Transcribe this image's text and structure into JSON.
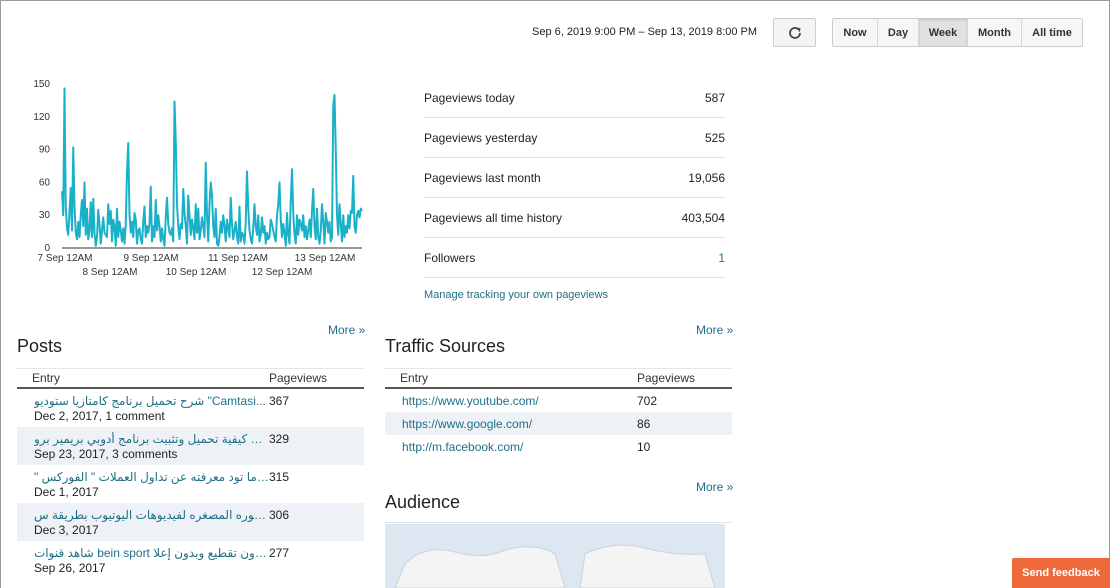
{
  "header": {
    "date_range": "Sep 6, 2019 9:00 PM – Sep 13, 2019 8:00 PM",
    "range_buttons": [
      {
        "label": "Now",
        "active": false
      },
      {
        "label": "Day",
        "active": false
      },
      {
        "label": "Week",
        "active": true
      },
      {
        "label": "Month",
        "active": false
      },
      {
        "label": "All time",
        "active": false
      }
    ]
  },
  "chart_data": {
    "type": "line",
    "series": [
      {
        "values": [
          52,
          30,
          146,
          38,
          18,
          12,
          33,
          55,
          16,
          92,
          38,
          14,
          8,
          24,
          10,
          30,
          44,
          20,
          60,
          12,
          36,
          8,
          16,
          42,
          10,
          45,
          14,
          2,
          10,
          35,
          22,
          4,
          16,
          28,
          14,
          12,
          10,
          40,
          22,
          34,
          6,
          26,
          20,
          2,
          36,
          10,
          24,
          16,
          6,
          18,
          4,
          22,
          70,
          96,
          30,
          14,
          24,
          10,
          32,
          26,
          4,
          16,
          18,
          8,
          4,
          24,
          38,
          10,
          20,
          14,
          22,
          56,
          6,
          20,
          10,
          44,
          16,
          30,
          20,
          6,
          18,
          8,
          2,
          28,
          46,
          22,
          14,
          12,
          18,
          6,
          134,
          98,
          40,
          20,
          8,
          22,
          18,
          54,
          32,
          20,
          4,
          48,
          30,
          12,
          26,
          18,
          8,
          40,
          14,
          36,
          8,
          16,
          28,
          20,
          10,
          78,
          30,
          6,
          40,
          60,
          48,
          20,
          10,
          36,
          4,
          2,
          10,
          24,
          14,
          30,
          20,
          6,
          26,
          18,
          10,
          46,
          22,
          8,
          16,
          24,
          10,
          4,
          38,
          6,
          14,
          12,
          4,
          24,
          70,
          36,
          16,
          8,
          4,
          18,
          40,
          20,
          12,
          30,
          6,
          12,
          28,
          14,
          20,
          4,
          14,
          8,
          10,
          26,
          22,
          16,
          10,
          6,
          30,
          40,
          60,
          26,
          10,
          22,
          14,
          2,
          32,
          12,
          4,
          42,
          72,
          32,
          12,
          4,
          30,
          12,
          26,
          22,
          16,
          30,
          10,
          20,
          8,
          16,
          26,
          10,
          34,
          54,
          20,
          8,
          36,
          10,
          4,
          16,
          40,
          24,
          4,
          32,
          24,
          14,
          24,
          6,
          10,
          130,
          140,
          90,
          30,
          12,
          40,
          22,
          6,
          30,
          10,
          20,
          14,
          30,
          18,
          34,
          32,
          66,
          20,
          14,
          30,
          34,
          28,
          36,
          34
        ]
      }
    ],
    "ylim": [
      0,
      150
    ],
    "y_ticks": [
      "150",
      "120",
      "90",
      "60",
      "30",
      "0"
    ],
    "x_ticks_top": [
      "7 Sep 12AM",
      "9 Sep 12AM",
      "11 Sep 12AM",
      "13 Sep 12AM"
    ],
    "x_ticks_bottom": [
      "8 Sep 12AM",
      "10 Sep 12AM",
      "12 Sep 12AM"
    ],
    "line_color": "#1ab1c8"
  },
  "stats": [
    {
      "label": "Pageviews today",
      "value": "587"
    },
    {
      "label": "Pageviews yesterday",
      "value": "525"
    },
    {
      "label": "Pageviews last month",
      "value": "19,056"
    },
    {
      "label": "Pageviews all time history",
      "value": "403,504"
    },
    {
      "label": "Followers",
      "value": "1"
    }
  ],
  "manage_link": "Manage tracking your own pageviews",
  "more_label": "More »",
  "posts": {
    "title": "Posts",
    "col_entry": "Entry",
    "col_pageviews": "Pageviews",
    "rows": [
      {
        "title": "شرح تحميل برنامج كامتازيا ستوديو \"Camtasi...",
        "meta": "Dec 2, 2017, 1 comment",
        "pageviews": "367"
      },
      {
        "title": "شرح كيفية تحميل وتثبيت برنامج أدوبي بريمير برو...",
        "meta": "Sep 23, 2017, 3 comments",
        "pageviews": "329"
      },
      {
        "title": "\" كل ما تود معرفته عن تداول العملات \" الفوركس",
        "meta": "Dec 1, 2017",
        "pageviews": "315"
      },
      {
        "title": "الصوره المصغره لفيديوهات اليوتيوب بطريقة س...",
        "meta": "Dec 3, 2017",
        "pageviews": "306"
      },
      {
        "title": "شاهد قنوات bein sport دون تقطيع وبدون إعلا...",
        "meta": "Sep 26, 2017",
        "pageviews": "277"
      }
    ]
  },
  "traffic": {
    "title": "Traffic Sources",
    "col_entry": "Entry",
    "col_pageviews": "Pageviews",
    "rows": [
      {
        "source": "https://www.youtube.com/",
        "pageviews": "702"
      },
      {
        "source": "https://www.google.com/",
        "pageviews": "86"
      },
      {
        "source": "http://m.facebook.com/",
        "pageviews": "10"
      }
    ]
  },
  "audience": {
    "title": "Audience"
  },
  "feedback_label": "Send feedback"
}
